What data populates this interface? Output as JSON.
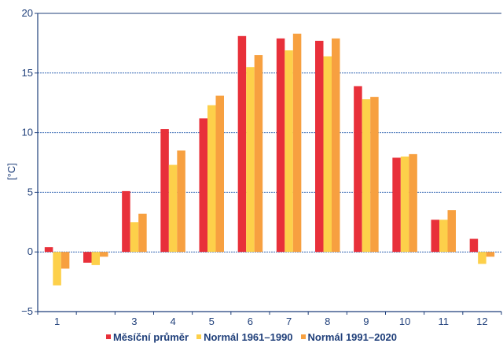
{
  "chart_data": {
    "type": "bar",
    "title": "",
    "xlabel": "",
    "ylabel": "[°C]",
    "ylim": [
      -5,
      20
    ],
    "yticks": [
      "−5",
      "0",
      "5",
      "10",
      "15",
      "20"
    ],
    "grid": true,
    "legend_position": "bottom",
    "categories": [
      "1",
      "",
      "3",
      "4",
      "5",
      "6",
      "7",
      "8",
      "9",
      "10",
      "11",
      "12"
    ],
    "series": [
      {
        "name": "Měsíční průměr",
        "color": "#e8303a",
        "values": [
          0.4,
          -0.9,
          5.1,
          10.3,
          11.2,
          18.1,
          17.9,
          17.7,
          13.9,
          7.9,
          2.7,
          1.1
        ]
      },
      {
        "name": "Normál 1961–1990",
        "color": "#fdd04a",
        "values": [
          -2.8,
          -1.1,
          2.5,
          7.3,
          12.3,
          15.5,
          16.9,
          16.4,
          12.8,
          8.0,
          2.7,
          -1.0
        ]
      },
      {
        "name": "Normál 1991–2020",
        "color": "#f7a040",
        "values": [
          -1.4,
          -0.4,
          3.2,
          8.5,
          13.1,
          16.5,
          18.3,
          17.9,
          13.0,
          8.2,
          3.5,
          -0.4
        ]
      }
    ]
  }
}
